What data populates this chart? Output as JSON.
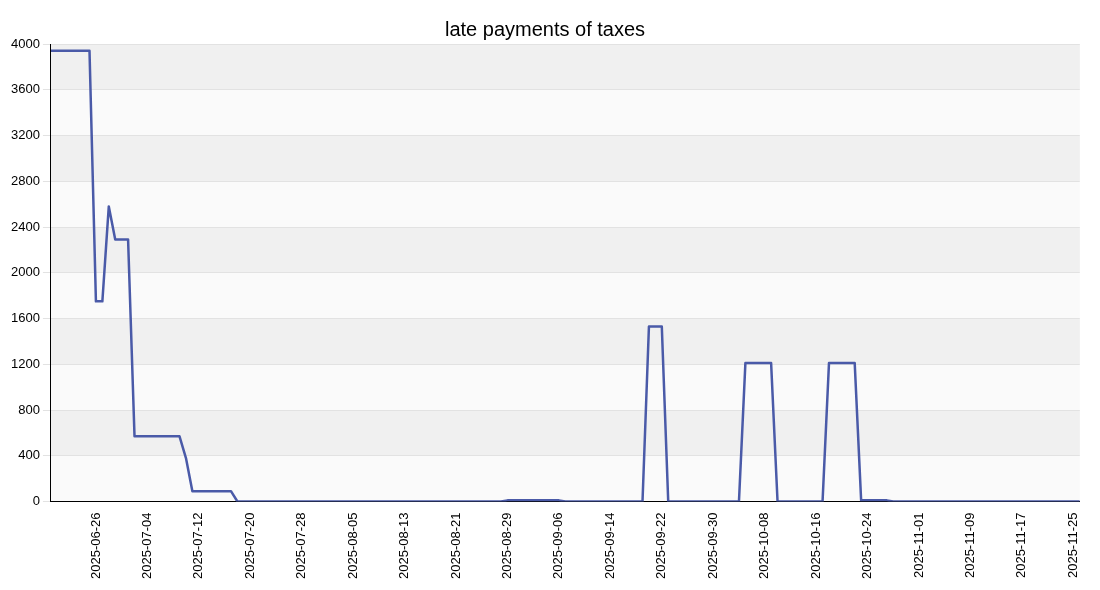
{
  "chart_data": {
    "type": "line",
    "title": "late payments of taxes",
    "x": [
      "2025-06-19",
      "2025-06-25",
      "2025-06-26",
      "2025-06-27",
      "2025-06-28",
      "2025-06-29",
      "2025-07-01",
      "2025-07-02",
      "2025-07-09",
      "2025-07-10",
      "2025-07-11",
      "2025-07-17",
      "2025-07-18",
      "2025-08-28",
      "2025-08-29",
      "2025-09-06",
      "2025-09-07",
      "2025-09-19",
      "2025-09-20",
      "2025-09-22",
      "2025-09-23",
      "2025-10-04",
      "2025-10-05",
      "2025-10-09",
      "2025-10-10",
      "2025-10-17",
      "2025-10-18",
      "2025-10-22",
      "2025-10-23",
      "2025-10-27",
      "2025-10-28",
      "2025-11-26"
    ],
    "series": [
      {
        "color": "#4a5aa8",
        "values": [
          3940,
          3940,
          1750,
          1750,
          2580,
          2290,
          2290,
          570,
          570,
          380,
          90,
          90,
          0,
          0,
          10,
          10,
          0,
          0,
          1530,
          1530,
          0,
          0,
          1210,
          1210,
          0,
          0,
          1210,
          1210,
          10,
          10,
          0,
          0
        ]
      }
    ],
    "xlim": [
      "2025-06-19",
      "2025-11-26"
    ],
    "xticks": [
      "2025-06-26",
      "2025-07-04",
      "2025-07-12",
      "2025-07-20",
      "2025-07-28",
      "2025-08-05",
      "2025-08-13",
      "2025-08-21",
      "2025-08-29",
      "2025-09-06",
      "2025-09-14",
      "2025-09-22",
      "2025-09-30",
      "2025-10-08",
      "2025-10-16",
      "2025-10-24",
      "2025-11-01",
      "2025-11-09",
      "2025-11-17",
      "2025-11-25"
    ],
    "ylim": [
      0,
      4000
    ],
    "yticks": [
      0,
      400,
      800,
      1200,
      1600,
      2000,
      2400,
      2800,
      3200,
      3600,
      4000
    ],
    "grid": "y",
    "legend": false,
    "marker": "none",
    "line_style": "solid"
  }
}
